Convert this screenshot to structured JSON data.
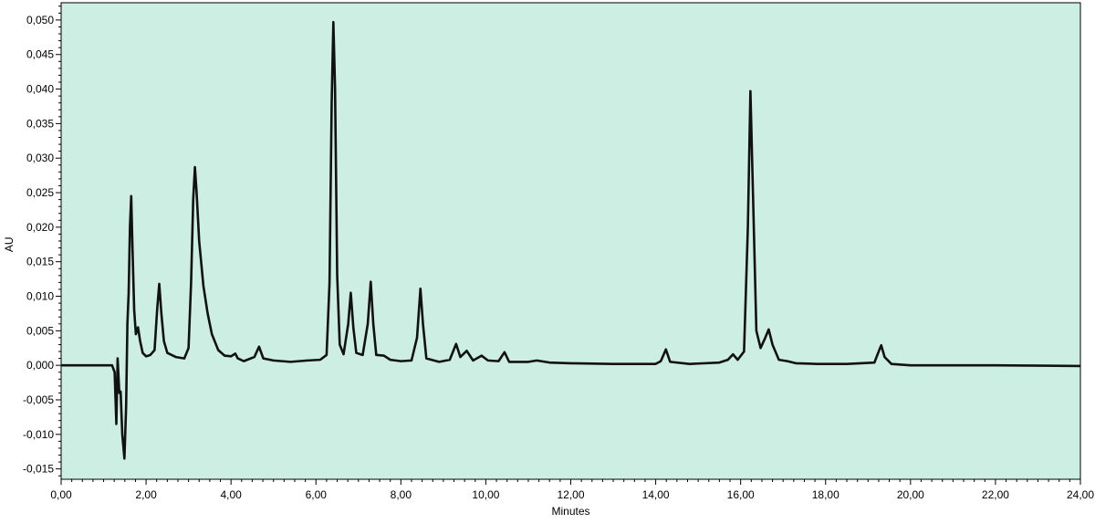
{
  "chart_data": {
    "type": "line",
    "title": "",
    "xlabel": "Minutes",
    "ylabel": "AU",
    "xlim": [
      0,
      24
    ],
    "ylim": [
      -0.0165,
      0.0525
    ],
    "xticks": [
      0,
      2,
      4,
      6,
      8,
      10,
      12,
      14,
      16,
      18,
      20,
      22,
      24
    ],
    "xtick_labels": [
      "0,00",
      "2,00",
      "4,00",
      "6,00",
      "8,00",
      "10,00",
      "12,00",
      "14,00",
      "16,00",
      "18,00",
      "20,00",
      "22,00",
      "24,00"
    ],
    "yticks": [
      -0.015,
      -0.01,
      -0.005,
      0.0,
      0.005,
      0.01,
      0.015,
      0.02,
      0.025,
      0.03,
      0.035,
      0.04,
      0.045,
      0.05
    ],
    "ytick_labels": [
      "-0,015",
      "-0,010",
      "-0,005",
      "0,000",
      "0,005",
      "0,010",
      "0,015",
      "0,020",
      "0,025",
      "0,030",
      "0,035",
      "0,040",
      "0,045",
      "0,050"
    ],
    "grid": false,
    "colors": {
      "plot_background": "#cdeee2",
      "trace": "#111111"
    },
    "series": [
      {
        "points": [
          [
            0.0,
            0.0
          ],
          [
            1.0,
            0.0
          ],
          [
            1.2,
            0.0
          ],
          [
            1.26,
            -0.001
          ],
          [
            1.3,
            -0.0085
          ],
          [
            1.33,
            0.001
          ],
          [
            1.37,
            -0.004
          ],
          [
            1.4,
            -0.0038
          ],
          [
            1.44,
            -0.01
          ],
          [
            1.49,
            -0.0135
          ],
          [
            1.53,
            -0.006
          ],
          [
            1.56,
            0.006
          ],
          [
            1.59,
            0.0105
          ],
          [
            1.62,
            0.02
          ],
          [
            1.65,
            0.0245
          ],
          [
            1.68,
            0.017
          ],
          [
            1.72,
            0.008
          ],
          [
            1.76,
            0.0045
          ],
          [
            1.81,
            0.0055
          ],
          [
            1.86,
            0.0035
          ],
          [
            1.92,
            0.0018
          ],
          [
            2.0,
            0.0013
          ],
          [
            2.1,
            0.0015
          ],
          [
            2.2,
            0.0022
          ],
          [
            2.26,
            0.008
          ],
          [
            2.31,
            0.0118
          ],
          [
            2.36,
            0.0075
          ],
          [
            2.42,
            0.0035
          ],
          [
            2.5,
            0.0018
          ],
          [
            2.7,
            0.0012
          ],
          [
            2.9,
            0.001
          ],
          [
            3.0,
            0.0025
          ],
          [
            3.06,
            0.012
          ],
          [
            3.11,
            0.024
          ],
          [
            3.15,
            0.0287
          ],
          [
            3.19,
            0.025
          ],
          [
            3.25,
            0.018
          ],
          [
            3.35,
            0.0115
          ],
          [
            3.45,
            0.0075
          ],
          [
            3.55,
            0.0045
          ],
          [
            3.7,
            0.0022
          ],
          [
            3.85,
            0.0014
          ],
          [
            4.0,
            0.0013
          ],
          [
            4.1,
            0.0017
          ],
          [
            4.16,
            0.001
          ],
          [
            4.3,
            0.0006
          ],
          [
            4.55,
            0.0012
          ],
          [
            4.66,
            0.0027
          ],
          [
            4.76,
            0.001
          ],
          [
            5.0,
            0.0007
          ],
          [
            5.4,
            0.0005
          ],
          [
            5.8,
            0.0007
          ],
          [
            6.1,
            0.0008
          ],
          [
            6.25,
            0.0015
          ],
          [
            6.32,
            0.012
          ],
          [
            6.37,
            0.038
          ],
          [
            6.41,
            0.0497
          ],
          [
            6.45,
            0.04
          ],
          [
            6.5,
            0.013
          ],
          [
            6.56,
            0.003
          ],
          [
            6.65,
            0.0016
          ],
          [
            6.76,
            0.006
          ],
          [
            6.82,
            0.0105
          ],
          [
            6.88,
            0.0055
          ],
          [
            6.95,
            0.0018
          ],
          [
            7.1,
            0.0015
          ],
          [
            7.22,
            0.006
          ],
          [
            7.29,
            0.0121
          ],
          [
            7.35,
            0.006
          ],
          [
            7.42,
            0.0015
          ],
          [
            7.6,
            0.0014
          ],
          [
            7.75,
            0.0008
          ],
          [
            8.0,
            0.0006
          ],
          [
            8.25,
            0.0007
          ],
          [
            8.38,
            0.004
          ],
          [
            8.46,
            0.0111
          ],
          [
            8.52,
            0.006
          ],
          [
            8.6,
            0.001
          ],
          [
            8.9,
            0.0005
          ],
          [
            9.15,
            0.0008
          ],
          [
            9.3,
            0.0031
          ],
          [
            9.4,
            0.0012
          ],
          [
            9.55,
            0.0021
          ],
          [
            9.7,
            0.0007
          ],
          [
            9.9,
            0.0014
          ],
          [
            10.05,
            0.0007
          ],
          [
            10.3,
            0.0006
          ],
          [
            10.44,
            0.0019
          ],
          [
            10.55,
            0.0005
          ],
          [
            11.0,
            0.0005
          ],
          [
            11.2,
            0.0007
          ],
          [
            11.5,
            0.0004
          ],
          [
            12.0,
            0.0003
          ],
          [
            13.0,
            0.0002
          ],
          [
            14.0,
            0.0002
          ],
          [
            14.12,
            0.0006
          ],
          [
            14.24,
            0.0023
          ],
          [
            14.34,
            0.0005
          ],
          [
            14.8,
            0.0002
          ],
          [
            15.5,
            0.0004
          ],
          [
            15.7,
            0.0008
          ],
          [
            15.82,
            0.0016
          ],
          [
            15.93,
            0.0008
          ],
          [
            16.08,
            0.002
          ],
          [
            16.17,
            0.02
          ],
          [
            16.23,
            0.0397
          ],
          [
            16.29,
            0.025
          ],
          [
            16.37,
            0.005
          ],
          [
            16.47,
            0.0025
          ],
          [
            16.58,
            0.004
          ],
          [
            16.66,
            0.0052
          ],
          [
            16.75,
            0.003
          ],
          [
            16.9,
            0.0008
          ],
          [
            17.1,
            0.0006
          ],
          [
            17.3,
            0.0003
          ],
          [
            17.8,
            0.0002
          ],
          [
            18.5,
            0.0002
          ],
          [
            19.15,
            0.0004
          ],
          [
            19.25,
            0.002
          ],
          [
            19.31,
            0.0029
          ],
          [
            19.39,
            0.0012
          ],
          [
            19.55,
            0.0002
          ],
          [
            20.0,
            0.0
          ],
          [
            22.0,
            0.0
          ],
          [
            24.0,
            -0.0001
          ]
        ]
      }
    ]
  }
}
